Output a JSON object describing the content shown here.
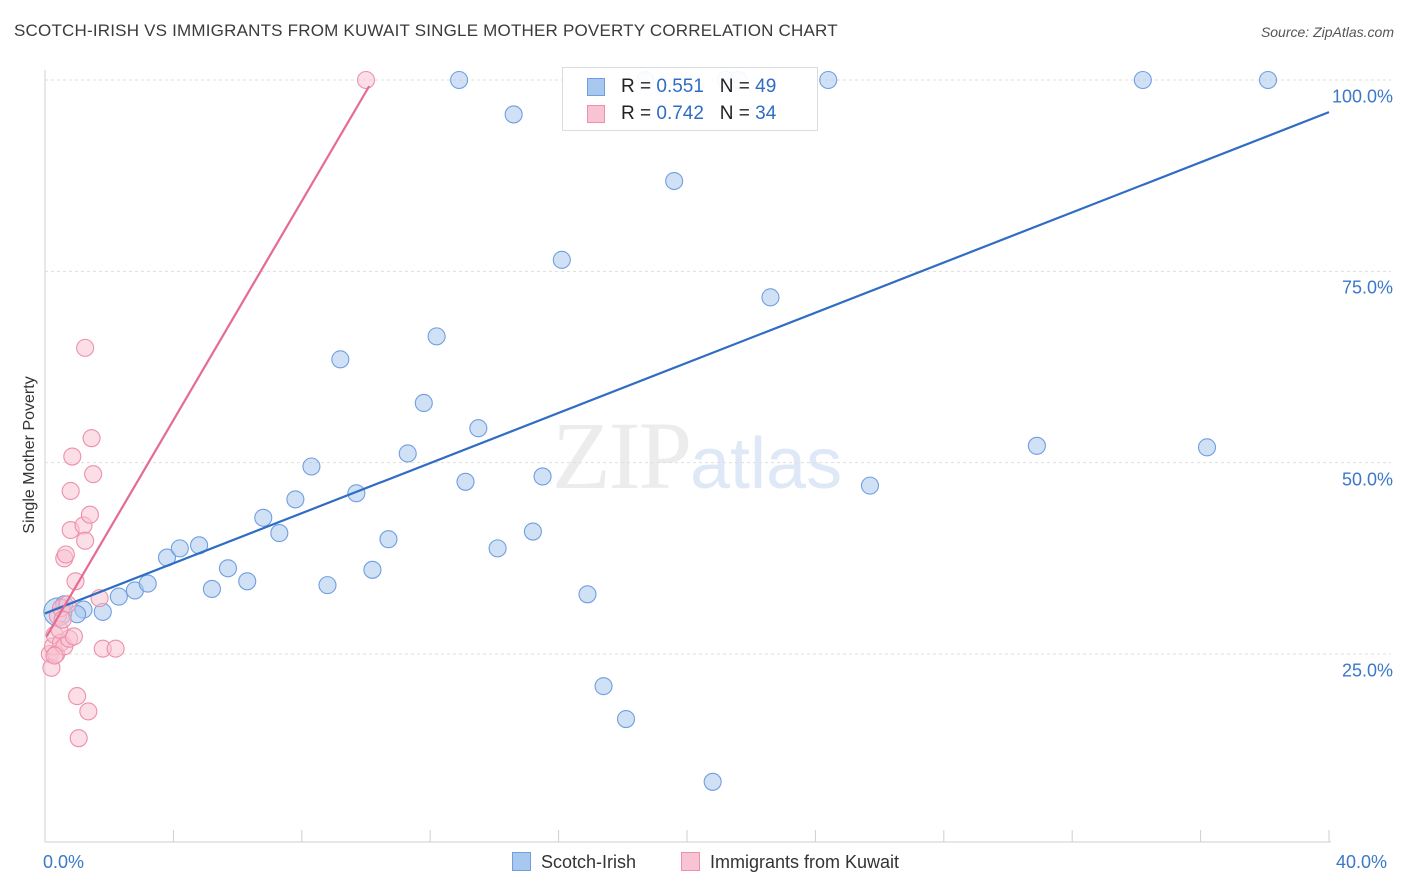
{
  "title": "SCOTCH-IRISH VS IMMIGRANTS FROM KUWAIT SINGLE MOTHER POVERTY CORRELATION CHART",
  "source": "Source: ZipAtlas.com",
  "watermark": {
    "zip": "ZIP",
    "atlas": "atlas"
  },
  "legend": {
    "r_label": "R =",
    "n_label": "N =",
    "rows": [
      {
        "r": "0.551",
        "n": "49",
        "color": "#a9c8ef",
        "border": "#6f9fe0"
      },
      {
        "r": "0.742",
        "n": "34",
        "color": "#f8c3d2",
        "border": "#ee8fab"
      }
    ]
  },
  "bottom_legend": [
    {
      "name": "Scotch-Irish",
      "color": "#a9c8ef",
      "border": "#6f9fe0"
    },
    {
      "name": "Immigrants from Kuwait",
      "color": "#f8c3d2",
      "border": "#ee8fab"
    }
  ],
  "chart_data": {
    "type": "scatter",
    "title": "SCOTCH-IRISH VS IMMIGRANTS FROM KUWAIT SINGLE MOTHER POVERTY CORRELATION CHART",
    "xlabel": "",
    "ylabel": "Single Mother Poverty",
    "xlim": [
      0,
      40
    ],
    "ylim": [
      0,
      102
    ],
    "x_tick_labels": [
      "0.0%",
      "40.0%"
    ],
    "y_ticks": [
      25,
      50,
      75,
      100
    ],
    "y_tick_labels": [
      "25.0%",
      "50.0%",
      "75.0%",
      "100.0%"
    ],
    "grid": true,
    "legend_position": "top-center",
    "series": [
      {
        "name": "Scotch-Irish",
        "color": "#6f9fe0",
        "fill": "#a9c8ef",
        "trend_color": "#2f6dc4",
        "trend": {
          "x": [
            0,
            40
          ],
          "y": [
            30.3,
            95.8
          ]
        },
        "points": [
          {
            "x": 0.4,
            "y": 30.5,
            "size": "large"
          },
          {
            "x": 1.2,
            "y": 30.8
          },
          {
            "x": 1.8,
            "y": 30.5
          },
          {
            "x": 2.3,
            "y": 32.5
          },
          {
            "x": 2.8,
            "y": 33.3
          },
          {
            "x": 3.2,
            "y": 34.2
          },
          {
            "x": 3.8,
            "y": 37.6
          },
          {
            "x": 4.2,
            "y": 38.8
          },
          {
            "x": 4.8,
            "y": 39.2
          },
          {
            "x": 5.2,
            "y": 33.5
          },
          {
            "x": 5.7,
            "y": 36.2
          },
          {
            "x": 6.3,
            "y": 34.5
          },
          {
            "x": 6.8,
            "y": 42.8
          },
          {
            "x": 7.3,
            "y": 40.8
          },
          {
            "x": 7.8,
            "y": 45.2
          },
          {
            "x": 8.3,
            "y": 49.5
          },
          {
            "x": 8.8,
            "y": 34.0
          },
          {
            "x": 9.2,
            "y": 63.5
          },
          {
            "x": 9.7,
            "y": 46.0
          },
          {
            "x": 10.2,
            "y": 36.0
          },
          {
            "x": 10.7,
            "y": 40.0
          },
          {
            "x": 11.3,
            "y": 51.2
          },
          {
            "x": 11.8,
            "y": 57.8
          },
          {
            "x": 12.2,
            "y": 66.5
          },
          {
            "x": 12.9,
            "y": 100.0
          },
          {
            "x": 13.1,
            "y": 47.5
          },
          {
            "x": 13.5,
            "y": 54.5
          },
          {
            "x": 14.1,
            "y": 38.8
          },
          {
            "x": 14.6,
            "y": 95.5
          },
          {
            "x": 15.2,
            "y": 41.0
          },
          {
            "x": 15.5,
            "y": 48.2
          },
          {
            "x": 16.1,
            "y": 76.5
          },
          {
            "x": 16.9,
            "y": 32.8
          },
          {
            "x": 17.4,
            "y": 20.8
          },
          {
            "x": 18.1,
            "y": 16.5
          },
          {
            "x": 18.7,
            "y": 100.0
          },
          {
            "x": 19.6,
            "y": 86.8
          },
          {
            "x": 20.8,
            "y": 8.3
          },
          {
            "x": 21.2,
            "y": 100.0
          },
          {
            "x": 21.6,
            "y": 100.0
          },
          {
            "x": 22.6,
            "y": 71.6
          },
          {
            "x": 24.4,
            "y": 100.0
          },
          {
            "x": 25.7,
            "y": 47.0
          },
          {
            "x": 30.9,
            "y": 52.2
          },
          {
            "x": 34.2,
            "y": 100.0
          },
          {
            "x": 36.2,
            "y": 52.0
          },
          {
            "x": 38.1,
            "y": 100.0
          },
          {
            "x": 0.6,
            "y": 31.5
          },
          {
            "x": 1.0,
            "y": 30.2
          }
        ]
      },
      {
        "name": "Immigrants from Kuwait",
        "color": "#ee8fab",
        "fill": "#f8c3d2",
        "trend_color": "#e56b93",
        "trend": {
          "x": [
            0.05,
            10.1
          ],
          "y": [
            27.3,
            99.2
          ]
        },
        "points": [
          {
            "x": 0.15,
            "y": 25.0
          },
          {
            "x": 0.2,
            "y": 23.2
          },
          {
            "x": 0.25,
            "y": 26.0
          },
          {
            "x": 0.3,
            "y": 27.5
          },
          {
            "x": 0.35,
            "y": 25.0
          },
          {
            "x": 0.4,
            "y": 30.0
          },
          {
            "x": 0.5,
            "y": 26.5
          },
          {
            "x": 0.5,
            "y": 31.0
          },
          {
            "x": 0.6,
            "y": 26.0
          },
          {
            "x": 0.6,
            "y": 37.5
          },
          {
            "x": 0.65,
            "y": 38.0
          },
          {
            "x": 0.7,
            "y": 31.5
          },
          {
            "x": 0.75,
            "y": 27.0
          },
          {
            "x": 0.8,
            "y": 41.2
          },
          {
            "x": 0.8,
            "y": 46.3
          },
          {
            "x": 0.85,
            "y": 50.8
          },
          {
            "x": 0.9,
            "y": 27.3
          },
          {
            "x": 0.95,
            "y": 34.5
          },
          {
            "x": 1.0,
            "y": 19.5
          },
          {
            "x": 1.05,
            "y": 14.0
          },
          {
            "x": 1.2,
            "y": 41.8
          },
          {
            "x": 1.25,
            "y": 39.8
          },
          {
            "x": 1.25,
            "y": 65.0
          },
          {
            "x": 1.35,
            "y": 17.5
          },
          {
            "x": 1.4,
            "y": 43.2
          },
          {
            "x": 1.45,
            "y": 53.2
          },
          {
            "x": 1.5,
            "y": 48.5
          },
          {
            "x": 1.7,
            "y": 32.3
          },
          {
            "x": 1.8,
            "y": 25.7
          },
          {
            "x": 2.2,
            "y": 25.7
          },
          {
            "x": 10.0,
            "y": 100.0
          },
          {
            "x": 0.3,
            "y": 24.8
          },
          {
            "x": 0.45,
            "y": 28.2
          },
          {
            "x": 0.55,
            "y": 29.5
          }
        ]
      }
    ]
  }
}
